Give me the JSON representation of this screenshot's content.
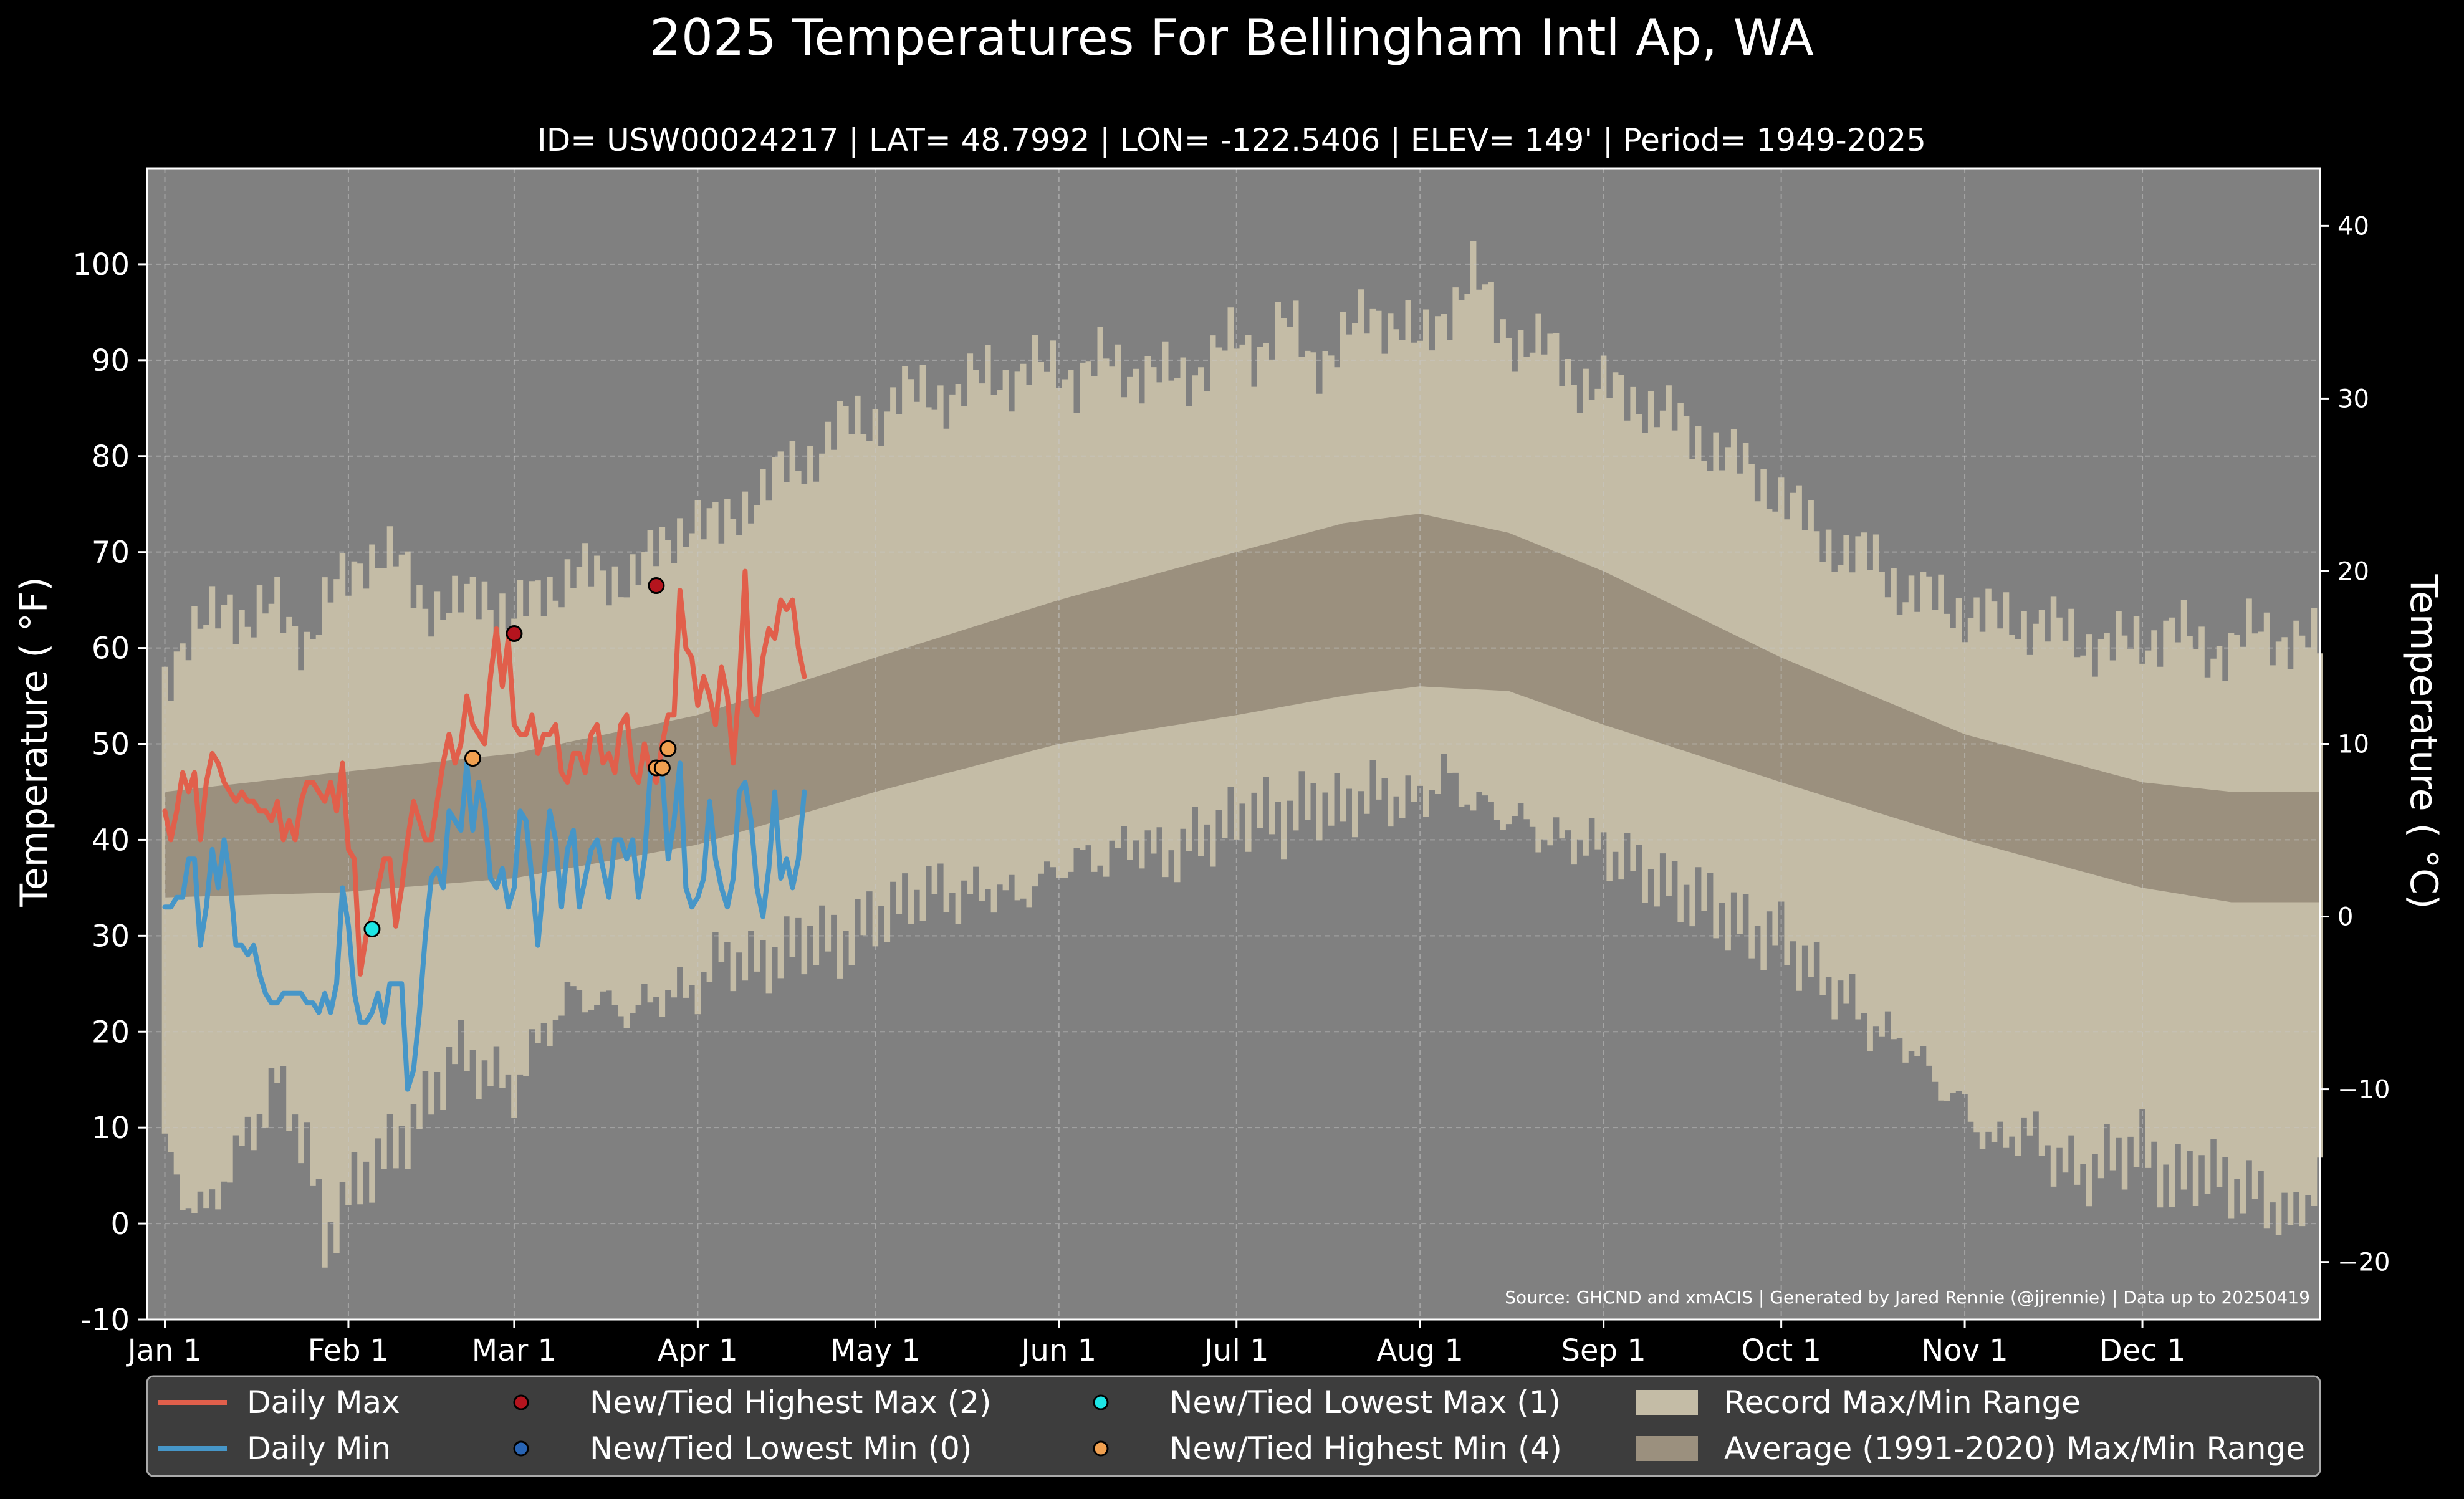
{
  "chart_data": {
    "type": "line",
    "title": "2025 Temperatures For Bellingham Intl Ap, WA",
    "subtitle": "ID= USW00024217 | LAT= 48.7992 | LON= -122.5406 | ELEV= 149' | Period= 1949-2025",
    "ylabel": "Temperature ( °F)",
    "ylabel_right": "Temperature ( °C)",
    "ylim": [
      -10,
      110
    ],
    "xlim_day": [
      -2,
      365
    ],
    "x_ticks": [
      {
        "label": "Jan 1",
        "day": 1
      },
      {
        "label": "Feb 1",
        "day": 32
      },
      {
        "label": "Mar 1",
        "day": 60
      },
      {
        "label": "Apr 1",
        "day": 91
      },
      {
        "label": "May 1",
        "day": 121
      },
      {
        "label": "Jun 1",
        "day": 152
      },
      {
        "label": "Jul 1",
        "day": 182
      },
      {
        "label": "Aug 1",
        "day": 213
      },
      {
        "label": "Sep 1",
        "day": 244
      },
      {
        "label": "Oct 1",
        "day": 274
      },
      {
        "label": "Nov 1",
        "day": 305
      },
      {
        "label": "Dec 1",
        "day": 335
      }
    ],
    "y_ticks": [
      -10,
      0,
      10,
      20,
      30,
      40,
      50,
      60,
      70,
      80,
      90,
      100
    ],
    "y_ticks_right": [
      -20,
      -10,
      0,
      10,
      20,
      30,
      40
    ],
    "y_ticks_right_labels": [
      "−20",
      "−10",
      "0",
      "10",
      "20",
      "30",
      "40"
    ],
    "grid": true,
    "source": "Source: GHCND and xmACIS | Generated by Jared Rennie (@jjrennie) | Data up to 20250419",
    "record_range": {
      "max": [
        [
          1,
          57
        ],
        [
          4,
          61
        ],
        [
          8,
          62
        ],
        [
          12,
          65
        ],
        [
          15,
          63
        ],
        [
          20,
          64
        ],
        [
          25,
          61
        ],
        [
          30,
          66
        ],
        [
          35,
          70
        ],
        [
          40,
          69
        ],
        [
          45,
          65
        ],
        [
          50,
          64
        ],
        [
          55,
          66
        ],
        [
          60,
          63
        ],
        [
          65,
          66
        ],
        [
          70,
          68
        ],
        [
          75,
          67
        ],
        [
          80,
          68
        ],
        [
          85,
          70
        ],
        [
          90,
          74
        ],
        [
          95,
          72
        ],
        [
          100,
          76
        ],
        [
          105,
          78
        ],
        [
          110,
          80
        ],
        [
          115,
          83
        ],
        [
          121,
          84
        ],
        [
          125,
          86
        ],
        [
          130,
          87
        ],
        [
          135,
          86
        ],
        [
          140,
          89
        ],
        [
          145,
          88
        ],
        [
          152,
          90
        ],
        [
          155,
          88
        ],
        [
          160,
          90
        ],
        [
          165,
          89
        ],
        [
          170,
          88
        ],
        [
          175,
          89
        ],
        [
          182,
          92
        ],
        [
          185,
          91
        ],
        [
          190,
          94
        ],
        [
          195,
          90
        ],
        [
          200,
          92
        ],
        [
          205,
          95
        ],
        [
          210,
          94
        ],
        [
          213,
          91
        ],
        [
          218,
          96
        ],
        [
          222,
          99
        ],
        [
          226,
          94
        ],
        [
          230,
          92
        ],
        [
          235,
          91
        ],
        [
          240,
          88
        ],
        [
          244,
          87
        ],
        [
          250,
          86
        ],
        [
          255,
          84
        ],
        [
          260,
          82
        ],
        [
          265,
          80
        ],
        [
          270,
          78
        ],
        [
          274,
          76
        ],
        [
          280,
          72
        ],
        [
          285,
          70
        ],
        [
          290,
          69
        ],
        [
          295,
          66
        ],
        [
          300,
          65
        ],
        [
          305,
          64
        ],
        [
          310,
          63
        ],
        [
          315,
          63
        ],
        [
          320,
          62
        ],
        [
          325,
          61
        ],
        [
          330,
          60
        ],
        [
          335,
          61
        ],
        [
          340,
          62
        ],
        [
          345,
          60
        ],
        [
          350,
          60
        ],
        [
          355,
          62
        ],
        [
          360,
          61
        ],
        [
          365,
          60
        ]
      ],
      "min": [
        [
          1,
          8
        ],
        [
          4,
          3
        ],
        [
          8,
          1
        ],
        [
          12,
          6
        ],
        [
          16,
          10
        ],
        [
          20,
          15
        ],
        [
          25,
          8
        ],
        [
          28,
          -2
        ],
        [
          32,
          3
        ],
        [
          36,
          6
        ],
        [
          40,
          8
        ],
        [
          45,
          12
        ],
        [
          50,
          18
        ],
        [
          55,
          16
        ],
        [
          60,
          14
        ],
        [
          65,
          20
        ],
        [
          70,
          24
        ],
        [
          75,
          23
        ],
        [
          80,
          22
        ],
        [
          85,
          24
        ],
        [
          90,
          24
        ],
        [
          95,
          28
        ],
        [
          100,
          27
        ],
        [
          105,
          28
        ],
        [
          110,
          30
        ],
        [
          115,
          29
        ],
        [
          121,
          32
        ],
        [
          125,
          33
        ],
        [
          130,
          35
        ],
        [
          135,
          34
        ],
        [
          140,
          35
        ],
        [
          145,
          34
        ],
        [
          152,
          37
        ],
        [
          155,
          38
        ],
        [
          160,
          38
        ],
        [
          165,
          40
        ],
        [
          170,
          38
        ],
        [
          175,
          40
        ],
        [
          182,
          42
        ],
        [
          185,
          43
        ],
        [
          190,
          42
        ],
        [
          195,
          44
        ],
        [
          200,
          43
        ],
        [
          205,
          45
        ],
        [
          210,
          44
        ],
        [
          213,
          44
        ],
        [
          217,
          47
        ],
        [
          220,
          45
        ],
        [
          225,
          43
        ],
        [
          230,
          42
        ],
        [
          235,
          40
        ],
        [
          240,
          40
        ],
        [
          244,
          39
        ],
        [
          250,
          37
        ],
        [
          255,
          35
        ],
        [
          260,
          34
        ],
        [
          265,
          32
        ],
        [
          270,
          30
        ],
        [
          274,
          30
        ],
        [
          278,
          27
        ],
        [
          282,
          25
        ],
        [
          286,
          23
        ],
        [
          290,
          20
        ],
        [
          295,
          19
        ],
        [
          300,
          15
        ],
        [
          305,
          12
        ],
        [
          310,
          8
        ],
        [
          315,
          10
        ],
        [
          320,
          7
        ],
        [
          325,
          5
        ],
        [
          330,
          7
        ],
        [
          335,
          8
        ],
        [
          340,
          4
        ],
        [
          345,
          6
        ],
        [
          350,
          4
        ],
        [
          355,
          3
        ],
        [
          360,
          0
        ],
        [
          365,
          5
        ]
      ]
    },
    "normal_range": {
      "max": [
        [
          1,
          45
        ],
        [
          30,
          47
        ],
        [
          60,
          49
        ],
        [
          91,
          53
        ],
        [
          121,
          59
        ],
        [
          152,
          65
        ],
        [
          182,
          70
        ],
        [
          200,
          73
        ],
        [
          213,
          74
        ],
        [
          228,
          72
        ],
        [
          244,
          68
        ],
        [
          274,
          59
        ],
        [
          305,
          51
        ],
        [
          335,
          46
        ],
        [
          350,
          45
        ],
        [
          365,
          45
        ]
      ],
      "min": [
        [
          1,
          34
        ],
        [
          30,
          34.5
        ],
        [
          60,
          36
        ],
        [
          91,
          39.5
        ],
        [
          121,
          45
        ],
        [
          152,
          50
        ],
        [
          182,
          53
        ],
        [
          200,
          55
        ],
        [
          213,
          56
        ],
        [
          228,
          55.5
        ],
        [
          244,
          52
        ],
        [
          274,
          46
        ],
        [
          305,
          40
        ],
        [
          335,
          35
        ],
        [
          350,
          33.5
        ],
        [
          365,
          33.5
        ]
      ]
    },
    "series": [
      {
        "name": "Daily Max",
        "color": "#e15f4b",
        "x": [
          1,
          2,
          3,
          4,
          5,
          6,
          7,
          8,
          9,
          10,
          11,
          12,
          13,
          14,
          15,
          16,
          17,
          18,
          19,
          20,
          21,
          22,
          23,
          24,
          25,
          26,
          27,
          28,
          29,
          30,
          31,
          32,
          33,
          34,
          35,
          36,
          37,
          38,
          39,
          40,
          41,
          42,
          43,
          44,
          45,
          46,
          47,
          48,
          49,
          50,
          51,
          52,
          53,
          54,
          55,
          56,
          57,
          58,
          59,
          60,
          61,
          62,
          63,
          64,
          65,
          66,
          67,
          68,
          69,
          70,
          71,
          72,
          73,
          74,
          75,
          76,
          77,
          78,
          79,
          80,
          81,
          82,
          83,
          84,
          85,
          86,
          87,
          88,
          89,
          90,
          91,
          92,
          93,
          94,
          95,
          96,
          97,
          98,
          99,
          100,
          101,
          102,
          103,
          104,
          105,
          106,
          107,
          108,
          109
        ],
        "values": [
          43,
          40,
          43,
          47,
          45,
          47,
          40,
          46,
          49,
          48,
          46,
          45,
          44,
          45,
          44,
          44,
          43,
          43,
          42,
          44,
          40,
          42,
          40,
          44,
          46,
          46,
          45,
          44,
          46,
          43,
          48,
          39,
          38,
          26,
          30,
          32,
          35,
          38,
          38,
          31,
          35,
          40,
          44,
          42,
          40,
          40,
          44,
          48,
          51,
          48,
          50,
          55,
          52,
          51,
          50,
          57,
          62,
          56,
          61,
          52,
          51,
          51,
          53,
          49,
          51,
          51,
          52,
          47,
          46,
          49,
          49,
          47,
          51,
          52,
          48,
          49,
          47,
          52,
          53,
          47,
          46,
          50,
          47,
          46,
          50,
          53,
          53,
          66,
          60,
          59,
          54,
          57,
          55,
          52,
          58,
          55,
          48,
          56,
          68,
          54,
          53,
          59,
          62,
          61,
          65,
          64,
          65,
          60,
          57
        ]
      },
      {
        "name": "Daily Min",
        "color": "#4696c8",
        "x": [
          1,
          2,
          3,
          4,
          5,
          6,
          7,
          8,
          9,
          10,
          11,
          12,
          13,
          14,
          15,
          16,
          17,
          18,
          19,
          20,
          21,
          22,
          23,
          24,
          25,
          26,
          27,
          28,
          29,
          30,
          31,
          32,
          33,
          34,
          35,
          36,
          37,
          38,
          39,
          40,
          41,
          42,
          43,
          44,
          45,
          46,
          47,
          48,
          49,
          50,
          51,
          52,
          53,
          54,
          55,
          56,
          57,
          58,
          59,
          60,
          61,
          62,
          63,
          64,
          65,
          66,
          67,
          68,
          69,
          70,
          71,
          72,
          73,
          74,
          75,
          76,
          77,
          78,
          79,
          80,
          81,
          82,
          83,
          84,
          85,
          86,
          87,
          88,
          89,
          90,
          91,
          92,
          93,
          94,
          95,
          96,
          97,
          98,
          99,
          100,
          101,
          102,
          103,
          104,
          105,
          106,
          107,
          108,
          109
        ],
        "values": [
          33,
          33,
          34,
          34,
          38,
          38,
          29,
          33,
          39,
          35,
          40,
          36,
          29,
          29,
          28,
          29,
          26,
          24,
          23,
          23,
          24,
          24,
          24,
          24,
          23,
          23,
          22,
          24,
          22,
          25,
          35,
          31,
          24,
          21,
          21,
          22,
          24,
          21,
          25,
          25,
          25,
          14,
          16,
          22,
          30,
          36,
          37,
          35,
          43,
          42,
          41,
          48,
          41,
          46,
          43,
          36,
          35,
          37,
          33,
          35,
          43,
          42,
          36,
          29,
          36,
          43,
          40,
          33,
          39,
          41,
          33,
          36,
          39,
          40,
          37,
          34,
          40,
          40,
          38,
          40,
          34,
          38,
          47,
          48,
          47,
          38,
          42,
          48,
          35,
          33,
          34,
          36,
          44,
          38,
          35,
          33,
          36,
          45,
          46,
          42,
          35,
          32,
          37,
          45,
          36,
          38,
          35,
          38,
          45
        ]
      }
    ],
    "records": [
      {
        "name": "New/Tied Highest Max (2)",
        "color": "#b4141e",
        "points": [
          [
            60,
            61.5
          ],
          [
            84,
            66.5
          ]
        ]
      },
      {
        "name": "New/Tied Lowest Min (0)",
        "color": "#2864b4",
        "points": []
      },
      {
        "name": "New/Tied Lowest Max (1)",
        "color": "#1ee6e6",
        "points": [
          [
            36,
            30.7
          ]
        ]
      },
      {
        "name": "New/Tied Highest Min (4)",
        "color": "#f0a050",
        "points": [
          [
            53,
            48.5
          ],
          [
            84,
            47.5
          ],
          [
            85,
            47.5
          ],
          [
            86,
            49.5
          ]
        ]
      }
    ],
    "legend": {
      "placement": "bottom",
      "items": [
        {
          "label": "Daily Max",
          "kind": "line",
          "color": "#e15f4b"
        },
        {
          "label": "Daily Min",
          "kind": "line",
          "color": "#4696c8"
        },
        {
          "label": "New/Tied Highest Max (2)",
          "kind": "dot",
          "color": "#b4141e"
        },
        {
          "label": "New/Tied Lowest Min (0)",
          "kind": "dot",
          "color": "#2864b4"
        },
        {
          "label": "New/Tied Lowest Max (1)",
          "kind": "dot",
          "color": "#1ee6e6"
        },
        {
          "label": "New/Tied Highest Min (4)",
          "kind": "dot",
          "color": "#f0a050"
        },
        {
          "label": "Record Max/Min Range",
          "kind": "patch",
          "color": "#c4bca6"
        },
        {
          "label": "Average (1991-2020) Max/Min Range",
          "kind": "patch",
          "color": "#9b907e"
        }
      ]
    },
    "colors": {
      "background": "#000000",
      "plot_background": "#808080",
      "record_band": "#c4bca6",
      "normal_band": "#9b907e",
      "legend_background": "#3d3d3d"
    }
  }
}
